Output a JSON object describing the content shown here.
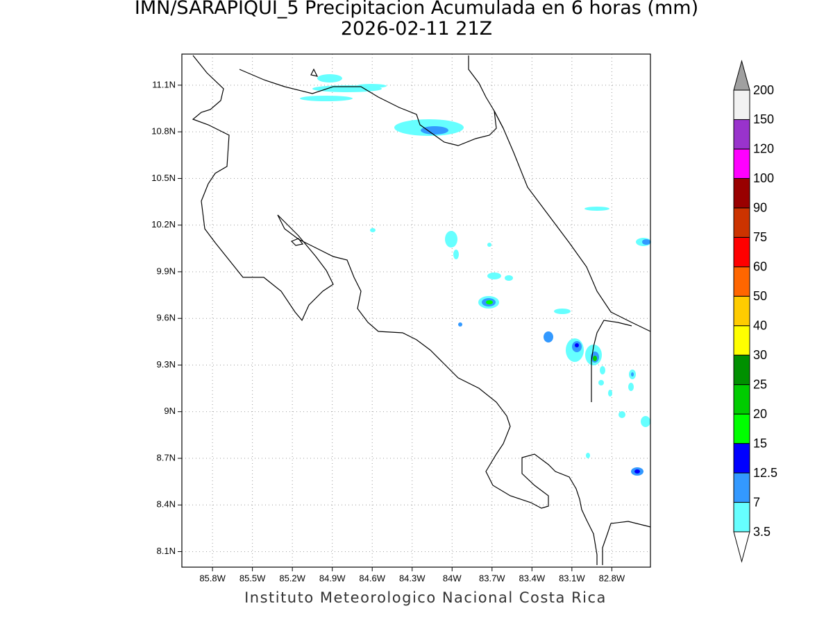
{
  "title": {
    "line1": "IMN/SARAPIQUI_5 Precipitacion Acumulada en 6 horas (mm)",
    "line2": "2026-02-11 21Z"
  },
  "map": {
    "lon_range": [
      -86.03,
      -82.51
    ],
    "lat_range": [
      8.0,
      11.3
    ],
    "lon_ticks": [
      {
        "value": -85.8,
        "label": "85.8W"
      },
      {
        "value": -85.5,
        "label": "85.5W"
      },
      {
        "value": -85.2,
        "label": "85.2W"
      },
      {
        "value": -84.9,
        "label": "84.9W"
      },
      {
        "value": -84.6,
        "label": "84.6W"
      },
      {
        "value": -84.3,
        "label": "84.3W"
      },
      {
        "value": -84.0,
        "label": "84W"
      },
      {
        "value": -83.7,
        "label": "83.7W"
      },
      {
        "value": -83.4,
        "label": "83.4W"
      },
      {
        "value": -83.1,
        "label": "83.1W"
      },
      {
        "value": -82.8,
        "label": "82.8W"
      }
    ],
    "lat_ticks": [
      {
        "value": 11.1,
        "label": "11.1N"
      },
      {
        "value": 10.8,
        "label": "10.8N"
      },
      {
        "value": 10.5,
        "label": "10.5N"
      },
      {
        "value": 10.2,
        "label": "10.2N"
      },
      {
        "value": 9.9,
        "label": "9.9N"
      },
      {
        "value": 9.6,
        "label": "9.6N"
      },
      {
        "value": 9.3,
        "label": "9.3N"
      },
      {
        "value": 9.0,
        "label": "9N"
      },
      {
        "value": 8.7,
        "label": "8.7N"
      },
      {
        "value": 8.4,
        "label": "8.4N"
      },
      {
        "value": 8.1,
        "label": "8.1N"
      }
    ]
  },
  "colorbar": {
    "levels": [
      3.5,
      7,
      12.5,
      15,
      20,
      25,
      30,
      40,
      50,
      60,
      75,
      90,
      100,
      120,
      150,
      200
    ],
    "colors": [
      "#66ffff",
      "#3399ff",
      "#0000ff",
      "#00ff00",
      "#00cc00",
      "#009000",
      "#ffff00",
      "#ffcc00",
      "#ff6600",
      "#ff0000",
      "#cc3300",
      "#990000",
      "#ff00ff",
      "#9933cc",
      "#f2f2f2"
    ],
    "under_color": "#ffffff",
    "over_color": "#a0a0a0"
  },
  "footer": "Instituto Meteorologico Nacional Costa Rica"
}
